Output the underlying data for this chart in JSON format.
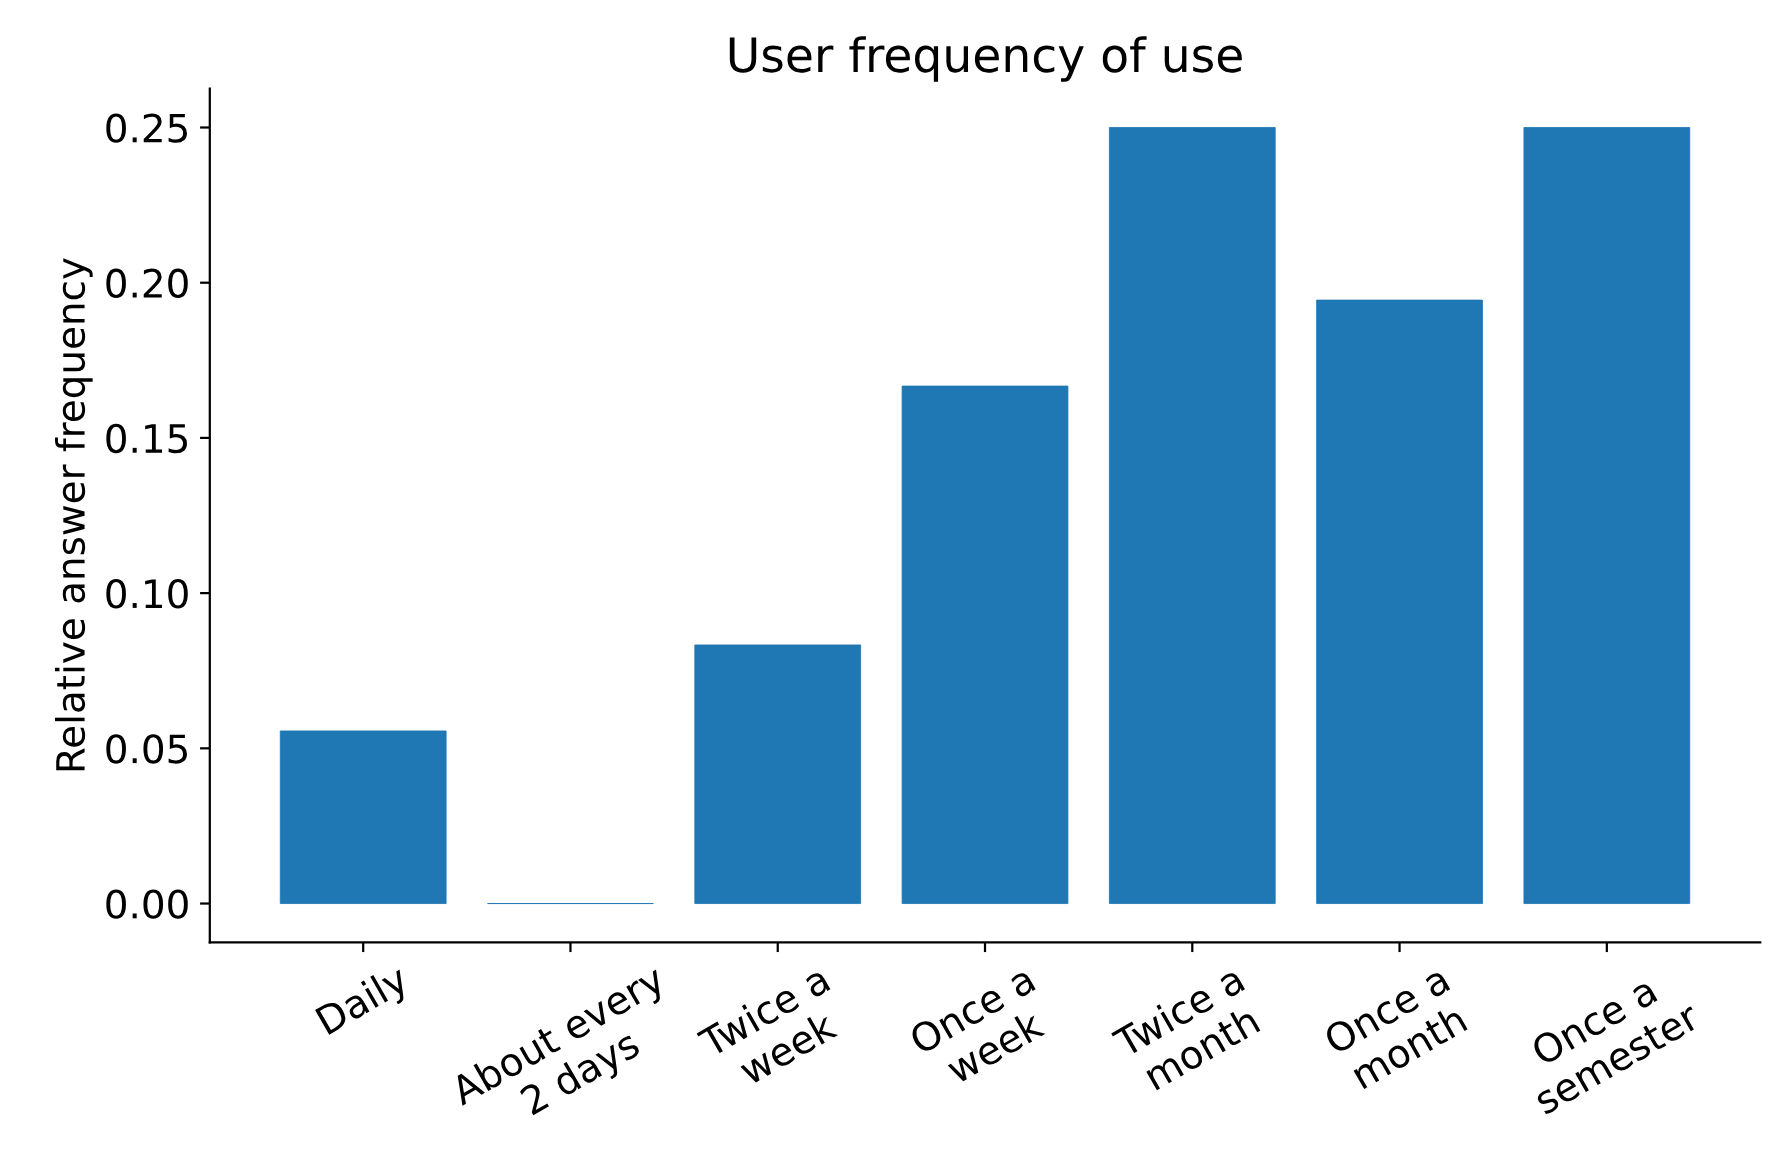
{
  "chart_data": {
    "type": "bar",
    "title": "User frequency of use",
    "ylabel": "Relative answer frequency",
    "categories": [
      "Daily",
      "About every\n2 days",
      "Twice a\nweek",
      "Once a\nweek",
      "Twice a\nmonth",
      "Once a\nmonth",
      "Once a\nsemester"
    ],
    "values": [
      0.0556,
      0,
      0.0833,
      0.1667,
      0.25,
      0.1944,
      0.25
    ],
    "color": "#1f77b4",
    "ylim": [
      -0.0125,
      0.2625
    ],
    "yticks": [
      {
        "value": 0,
        "label": "0.00"
      },
      {
        "value": 0.05,
        "label": "0.05"
      },
      {
        "value": 0.1,
        "label": "0.10"
      },
      {
        "value": 0.15,
        "label": "0.15"
      },
      {
        "value": 0.2,
        "label": "0.20"
      },
      {
        "value": 0.25,
        "label": "0.25"
      }
    ],
    "grid": false,
    "legend": false
  }
}
